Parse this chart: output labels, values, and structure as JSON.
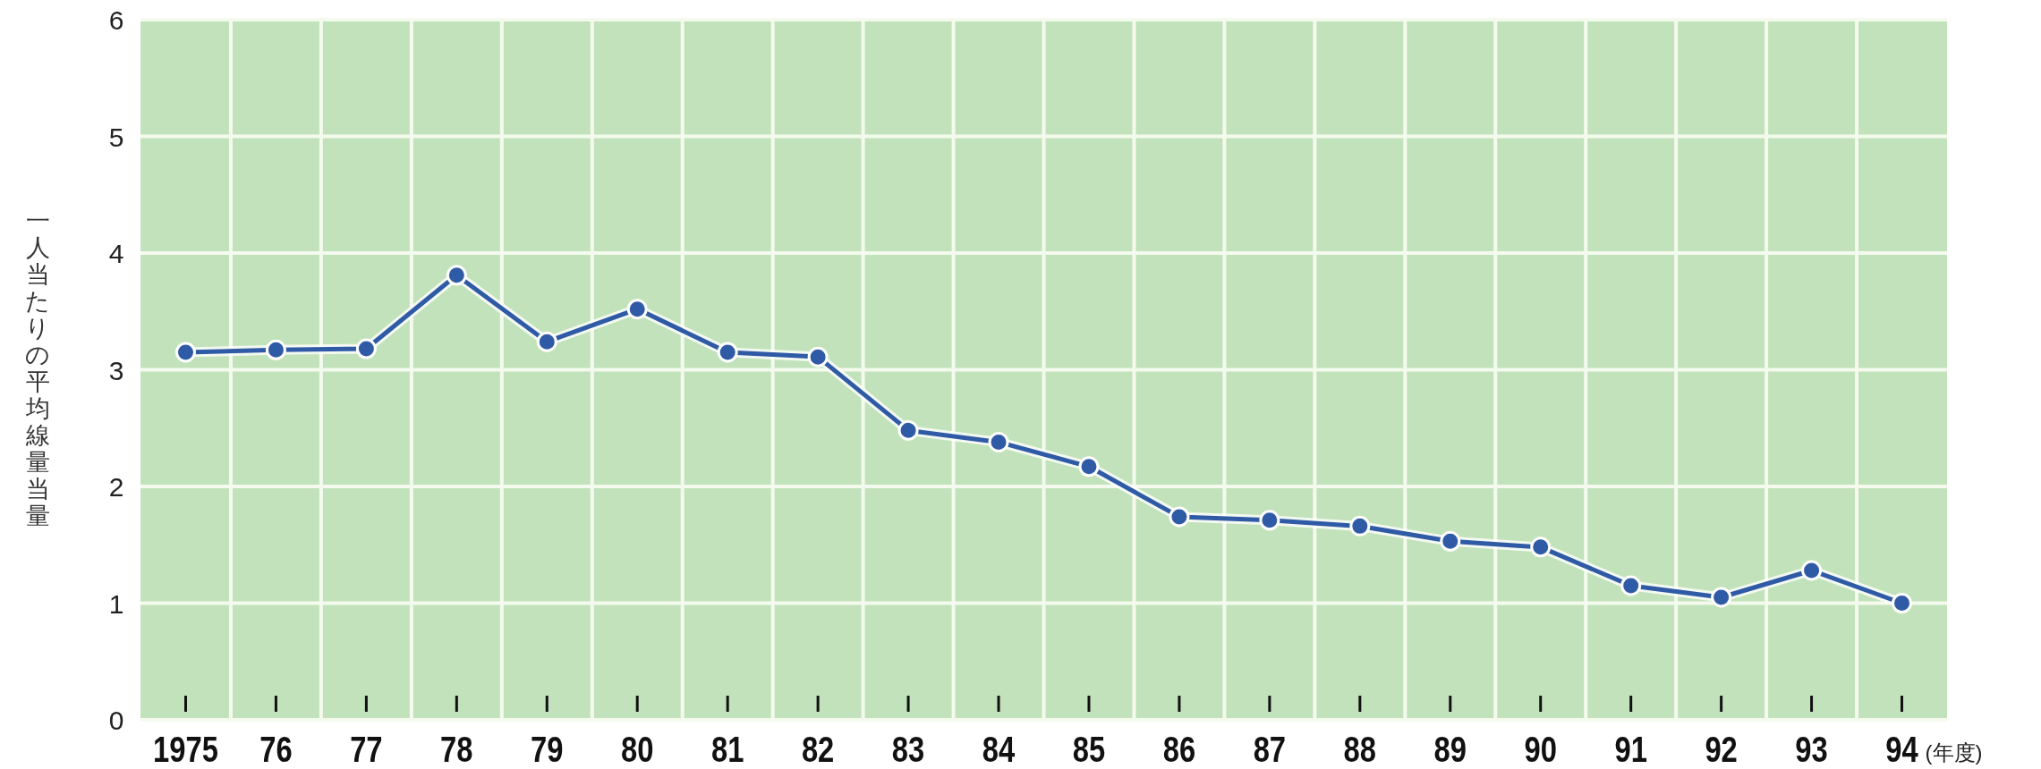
{
  "chart_data": {
    "type": "line",
    "ylabel": "一人当たりの平均線量当量",
    "xlabel": "(年度)",
    "categories": [
      "1975",
      "76",
      "77",
      "78",
      "79",
      "80",
      "81",
      "82",
      "83",
      "84",
      "85",
      "86",
      "87",
      "88",
      "89",
      "90",
      "91",
      "92",
      "93",
      "94"
    ],
    "series": [
      {
        "color": "#2f5aa6",
        "values": [
          3.15,
          3.17,
          3.18,
          3.81,
          3.24,
          3.52,
          3.15,
          3.11,
          2.48,
          2.38,
          2.17,
          1.74,
          1.71,
          1.66,
          1.53,
          1.48,
          1.15,
          1.05,
          1.28,
          1.0
        ]
      }
    ],
    "ylim": [
      0,
      6
    ],
    "yticks": [
      0,
      1,
      2,
      3,
      4,
      5,
      6
    ],
    "grid": true,
    "marker": "circle",
    "line_style": "solid"
  }
}
